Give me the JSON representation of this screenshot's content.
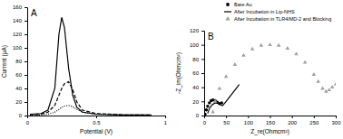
{
  "chart_data": [
    {
      "type": "line",
      "title": "A",
      "x_label": "Potential (V)",
      "y_label": "Current (μA)",
      "xlim": [
        0,
        1
      ],
      "xticks": [
        0,
        0.5,
        1
      ],
      "ylim": [
        0,
        160
      ],
      "yticks": [
        0,
        20,
        40,
        60,
        80,
        100,
        120,
        140,
        160
      ],
      "x": [
        0.02,
        0.1,
        0.15,
        0.2,
        0.23,
        0.25,
        0.27,
        0.3,
        0.33,
        0.36,
        0.4,
        0.5,
        0.7,
        0.9
      ],
      "series": [
        {
          "color": "#000000",
          "line_style": "solid",
          "values": [
            2,
            3,
            8,
            40,
            120,
            145,
            130,
            70,
            30,
            12,
            5,
            2,
            1,
            1
          ]
        },
        {
          "color": "#000000",
          "line_style": "dashed",
          "values": [
            1,
            2,
            5,
            15,
            30,
            40,
            47,
            50,
            38,
            20,
            8,
            3,
            1,
            1
          ]
        },
        {
          "color": "#000000",
          "line_style": "dotted",
          "values": [
            0.5,
            1,
            2,
            5,
            9,
            12,
            14,
            15,
            13,
            9,
            5,
            2,
            1,
            0.5
          ]
        }
      ]
    },
    {
      "type": "scatter",
      "title": "B",
      "x_label": "Z_re(Ohmcm²)",
      "y_label": "-Z_im(Ohmcm²)",
      "xlim": [
        0,
        300
      ],
      "xticks": [
        0,
        50,
        100,
        150,
        200,
        250,
        300
      ],
      "ylim": [
        0,
        120
      ],
      "yticks": [
        0,
        20,
        40,
        60,
        80,
        100,
        120
      ],
      "legend": "top-right",
      "series": [
        {
          "name": "Bare Au",
          "type": "scatter",
          "marker": "circle",
          "color": "#000000",
          "x": [
            2,
            5,
            8,
            12,
            16,
            20,
            25,
            30,
            35,
            40
          ],
          "values": [
            2,
            8,
            13,
            18,
            21,
            22,
            21,
            19,
            17,
            18
          ]
        },
        {
          "name": "After Incubation in Lip-NHS",
          "type": "line",
          "line_style": "solid",
          "color": "#000000",
          "x": [
            8,
            12,
            18,
            25,
            32,
            38,
            42,
            50,
            60,
            70,
            80
          ],
          "values": [
            3,
            10,
            15,
            18,
            17,
            15,
            14,
            20,
            28,
            36,
            44
          ]
        },
        {
          "name": "After Incubation in TLR4/MD-2 and Blocking",
          "type": "scatter",
          "marker": "triangle",
          "color": "#a0a0a0",
          "x": [
            20,
            25,
            35,
            50,
            70,
            90,
            110,
            130,
            150,
            170,
            190,
            210,
            230,
            250,
            260,
            270,
            278,
            285,
            292,
            300
          ],
          "values": [
            5,
            20,
            38,
            55,
            72,
            85,
            94,
            99,
            100,
            99,
            95,
            87,
            75,
            58,
            48,
            38,
            34,
            36,
            40,
            44
          ]
        }
      ]
    }
  ]
}
